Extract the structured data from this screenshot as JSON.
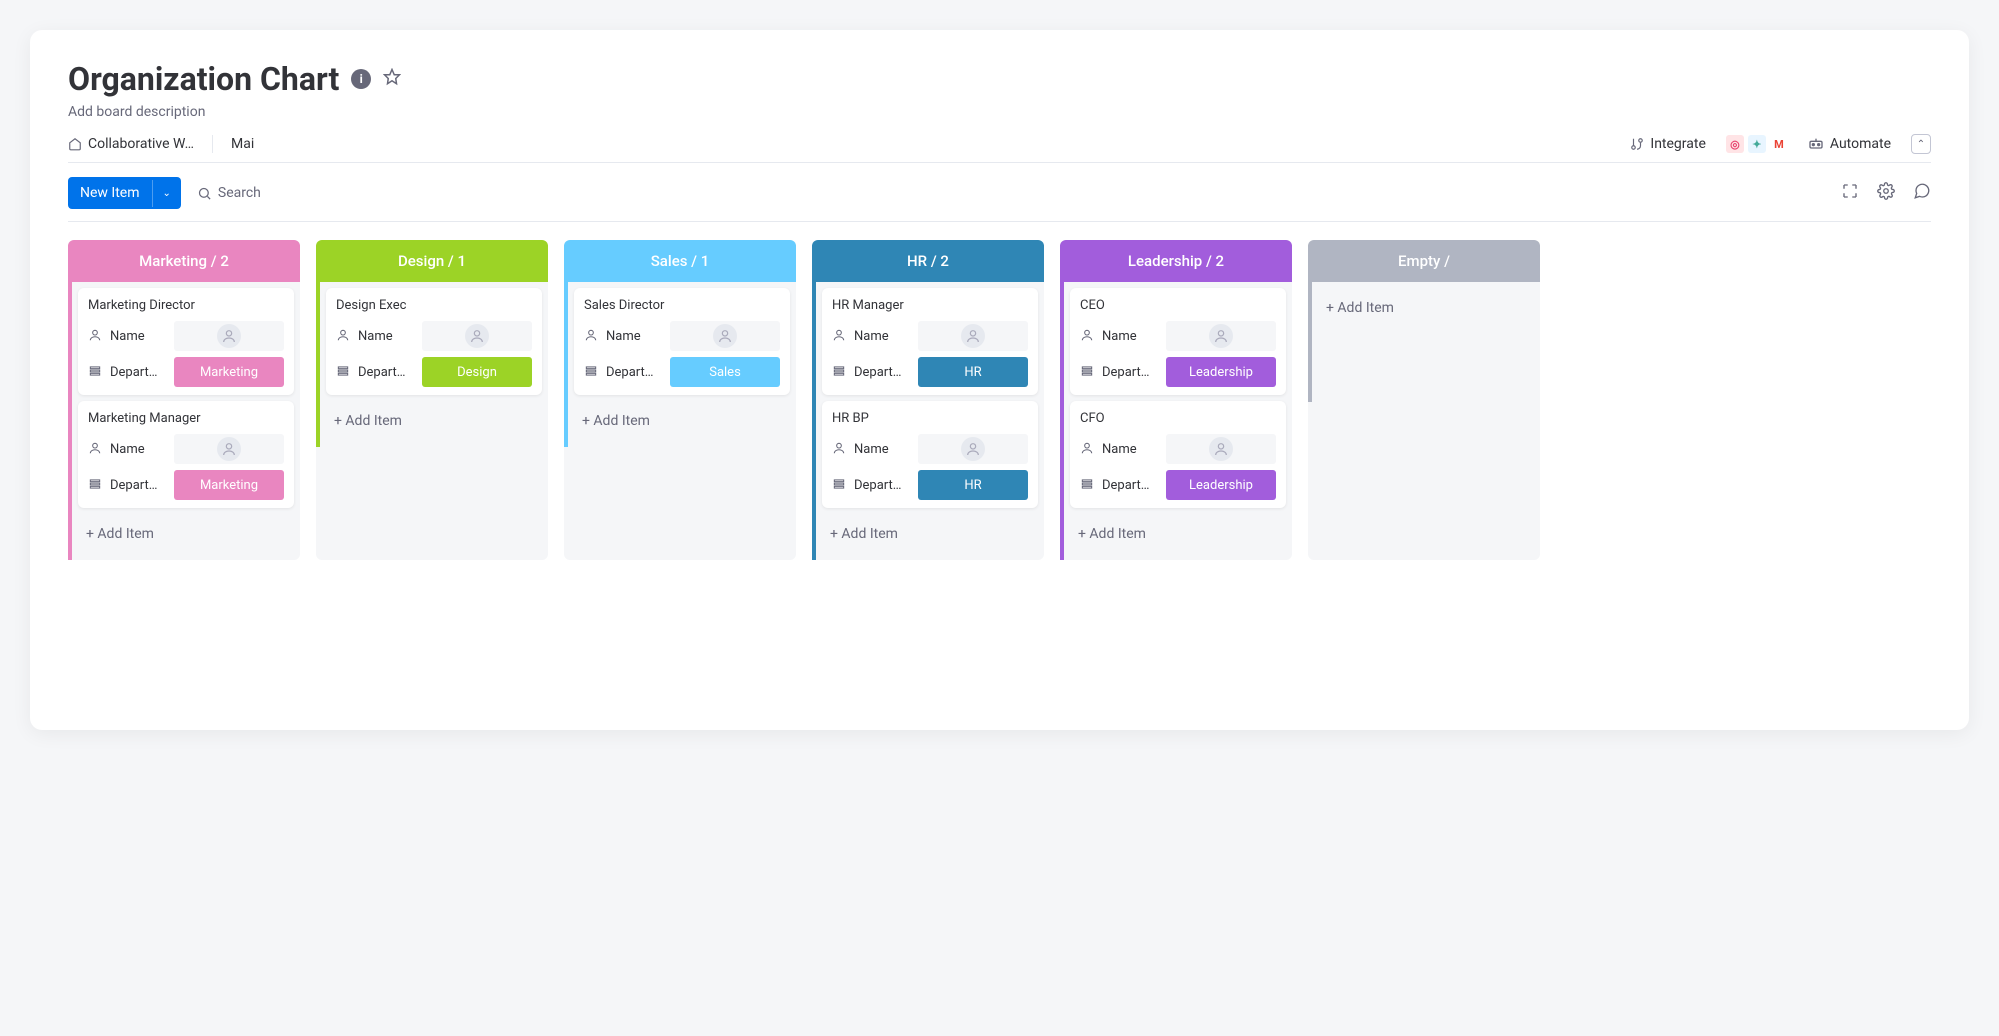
{
  "header": {
    "title": "Organization Chart",
    "subtitle": "Add board description"
  },
  "nav": {
    "workspace": "Collaborative W…",
    "view": "Mai",
    "integrate_label": "Integrate",
    "automate_label": "Automate"
  },
  "toolbar": {
    "new_item_label": "New Item",
    "search_label": "Search"
  },
  "row_labels": {
    "name": "Name",
    "department": "Depart…"
  },
  "add_item_label": "+ Add Item",
  "columns": [
    {
      "title": "Marketing / 2",
      "header_color": "#e986c0",
      "accent_color": "#e986c0",
      "cards": [
        {
          "title": "Marketing Director",
          "dept": "Marketing"
        },
        {
          "title": "Marketing Manager",
          "dept": "Marketing"
        }
      ]
    },
    {
      "title": "Design / 1",
      "header_color": "#9cd326",
      "accent_color": "#9cd326",
      "cards": [
        {
          "title": "Design Exec",
          "dept": "Design"
        }
      ]
    },
    {
      "title": "Sales / 1",
      "header_color": "#66ccff",
      "accent_color": "#66ccff",
      "cards": [
        {
          "title": "Sales Director",
          "dept": "Sales"
        }
      ]
    },
    {
      "title": "HR / 2",
      "header_color": "#2f86b5",
      "accent_color": "#2f86b5",
      "cards": [
        {
          "title": "HR Manager",
          "dept": "HR"
        },
        {
          "title": "HR BP",
          "dept": "HR"
        }
      ]
    },
    {
      "title": "Leadership / 2",
      "header_color": "#a25ddc",
      "accent_color": "#a25ddc",
      "cards": [
        {
          "title": "CEO",
          "dept": "Leadership"
        },
        {
          "title": "CFO",
          "dept": "Leadership"
        }
      ]
    },
    {
      "title": "Empty /",
      "header_color": "#b0b5c2",
      "accent_color": "#b0b5c2",
      "cards": []
    }
  ]
}
